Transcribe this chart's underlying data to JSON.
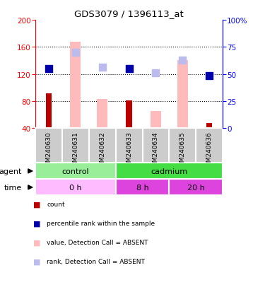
{
  "title": "GDS3079 / 1396113_at",
  "samples": [
    "GSM240630",
    "GSM240631",
    "GSM240632",
    "GSM240633",
    "GSM240634",
    "GSM240635",
    "GSM240636"
  ],
  "count_values": [
    91,
    null,
    null,
    81,
    null,
    null,
    48
  ],
  "value_absent": [
    null,
    168,
    83,
    null,
    65,
    140,
    null
  ],
  "percentile_rank": [
    128,
    null,
    null,
    128,
    null,
    null,
    118
  ],
  "rank_absent": [
    null,
    152,
    130,
    128,
    122,
    140,
    null
  ],
  "left_ylim": [
    40,
    200
  ],
  "left_yticks": [
    40,
    80,
    120,
    160,
    200
  ],
  "right_ylim": [
    0,
    100
  ],
  "right_yticks": [
    0,
    25,
    50,
    75,
    100
  ],
  "right_yticklabels": [
    "0",
    "25",
    "50",
    "75",
    "100%"
  ],
  "color_count": "#bb0000",
  "color_percentile": "#0000aa",
  "color_value_absent": "#ffbbbb",
  "color_rank_absent": "#bbbbee",
  "color_agent_control": "#99ee99",
  "color_agent_cadmium": "#44dd44",
  "color_time_0h": "#ffbbff",
  "color_time_8h": "#dd44dd",
  "color_time_20h": "#dd44dd",
  "color_bg_label": "#cccccc",
  "bar_width": 0.4,
  "count_bar_width": 0.22,
  "marker_size": 55
}
